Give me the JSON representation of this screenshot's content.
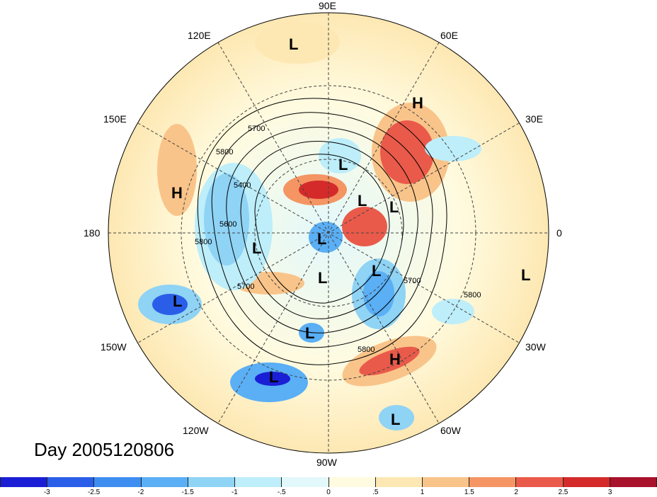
{
  "title": "Day 2005120806",
  "longitude_labels": [
    {
      "id": "lon-90e",
      "text": "90E"
    },
    {
      "id": "lon-60e",
      "text": "60E"
    },
    {
      "id": "lon-30e",
      "text": "30E"
    },
    {
      "id": "lon-0",
      "text": "0"
    },
    {
      "id": "lon-30w",
      "text": "30W"
    },
    {
      "id": "lon-60w",
      "text": "60W"
    },
    {
      "id": "lon-90w",
      "text": "90W"
    },
    {
      "id": "lon-120w",
      "text": "120W"
    },
    {
      "id": "lon-150w",
      "text": "150W"
    },
    {
      "id": "lon-180",
      "text": "180"
    },
    {
      "id": "lon-150e",
      "text": "150E"
    },
    {
      "id": "lon-120e",
      "text": "120E"
    }
  ],
  "contour_labels": [
    "5700",
    "5800",
    "5400",
    "5600",
    "5800",
    "5700",
    "5700",
    "5800",
    "5800"
  ],
  "pressure_centers": [
    "L",
    "H",
    "L",
    "H",
    "L",
    "L",
    "L",
    "L",
    "L",
    "L",
    "L",
    "L",
    "L",
    "L",
    "H",
    "L"
  ],
  "colorbar": {
    "labels": [
      "-3",
      "-2.5",
      "-2",
      "-1.5",
      "-1",
      "-.5",
      "0",
      ".5",
      "1",
      "1.5",
      "2",
      "2.5",
      "3"
    ],
    "colors": [
      "#1a1fd6",
      "#2b5ee8",
      "#3d8ef0",
      "#5aaff5",
      "#8fd3f5",
      "#bdeefa",
      "#e2f8fb",
      "#fffbe0",
      "#fde8b3",
      "#f9c48a",
      "#f49563",
      "#ea5a4a",
      "#d42a2a",
      "#a8122a"
    ]
  }
}
